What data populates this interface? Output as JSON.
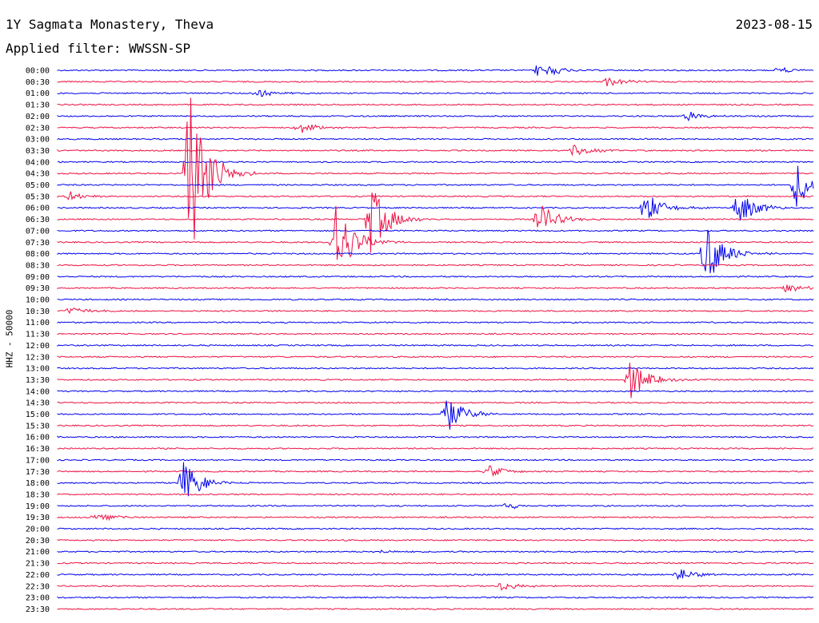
{
  "header": {
    "station": "1Y Sagmata Monastery, Theva",
    "date": "2023-08-15",
    "filter": "Applied filter: WWSSN-SP"
  },
  "channel_label": "HHZ - 50000",
  "colors": {
    "blue": "#0000ee",
    "red": "#ee1144",
    "background": "#ffffff"
  },
  "chart_data": {
    "type": "line",
    "title": "1Y Sagmata Monastery, Theva",
    "ylabel": "HHZ - 50000",
    "categories": [
      "00:00",
      "00:30",
      "01:00",
      "01:30",
      "02:00",
      "02:30",
      "03:00",
      "03:30",
      "04:00",
      "04:30",
      "05:00",
      "05:30",
      "06:00",
      "06:30",
      "07:00",
      "07:30",
      "08:00",
      "08:30",
      "09:00",
      "09:30",
      "10:00",
      "10:30",
      "11:00",
      "11:30",
      "12:00",
      "12:30",
      "13:00",
      "13:30",
      "14:00",
      "14:30",
      "15:00",
      "15:30",
      "16:00",
      "16:30",
      "17:00",
      "17:30",
      "18:00",
      "18:30",
      "19:00",
      "19:30",
      "20:00",
      "20:30",
      "21:00",
      "21:30",
      "22:00",
      "22:30",
      "23:00",
      "23:30"
    ],
    "series": [
      {
        "trace_colors": [
          "blue",
          "red"
        ],
        "events": [
          {
            "row": "00:00",
            "minute": 19.1,
            "amplitude": 12
          },
          {
            "row": "00:00",
            "minute": 28.6,
            "amplitude": 4
          },
          {
            "row": "00:30",
            "minute": 21.8,
            "amplitude": 6
          },
          {
            "row": "01:00",
            "minute": 7.9,
            "amplitude": 5
          },
          {
            "row": "02:00",
            "minute": 25.0,
            "amplitude": 6
          },
          {
            "row": "02:30",
            "minute": 9.6,
            "amplitude": 8
          },
          {
            "row": "03:30",
            "minute": 20.5,
            "amplitude": 8
          },
          {
            "row": "04:30",
            "minute": 5.2,
            "amplitude": 120
          },
          {
            "row": "05:00",
            "minute": 29.3,
            "amplitude": 30
          },
          {
            "row": "05:30",
            "minute": 0.5,
            "amplitude": 6
          },
          {
            "row": "06:00",
            "minute": 23.3,
            "amplitude": 20
          },
          {
            "row": "06:00",
            "minute": 27.0,
            "amplitude": 22
          },
          {
            "row": "06:30",
            "minute": 12.4,
            "amplitude": 45
          },
          {
            "row": "06:30",
            "minute": 19.1,
            "amplitude": 20
          },
          {
            "row": "07:30",
            "minute": 11.0,
            "amplitude": 55
          },
          {
            "row": "08:00",
            "minute": 25.7,
            "amplitude": 40
          },
          {
            "row": "09:30",
            "minute": 28.9,
            "amplitude": 6
          },
          {
            "row": "10:30",
            "minute": 0.5,
            "amplitude": 5
          },
          {
            "row": "13:30",
            "minute": 22.7,
            "amplitude": 25
          },
          {
            "row": "15:00",
            "minute": 15.4,
            "amplitude": 25
          },
          {
            "row": "17:30",
            "minute": 17.1,
            "amplitude": 8
          },
          {
            "row": "18:00",
            "minute": 5.0,
            "amplitude": 28
          },
          {
            "row": "19:00",
            "minute": 17.8,
            "amplitude": 5
          },
          {
            "row": "19:30",
            "minute": 1.5,
            "amplitude": 7
          },
          {
            "row": "21:00",
            "minute": 12.6,
            "amplitude": 3
          },
          {
            "row": "22:00",
            "minute": 24.6,
            "amplitude": 10
          },
          {
            "row": "22:30",
            "minute": 17.6,
            "amplitude": 6
          }
        ]
      }
    ],
    "grid": false,
    "legend": "none"
  }
}
